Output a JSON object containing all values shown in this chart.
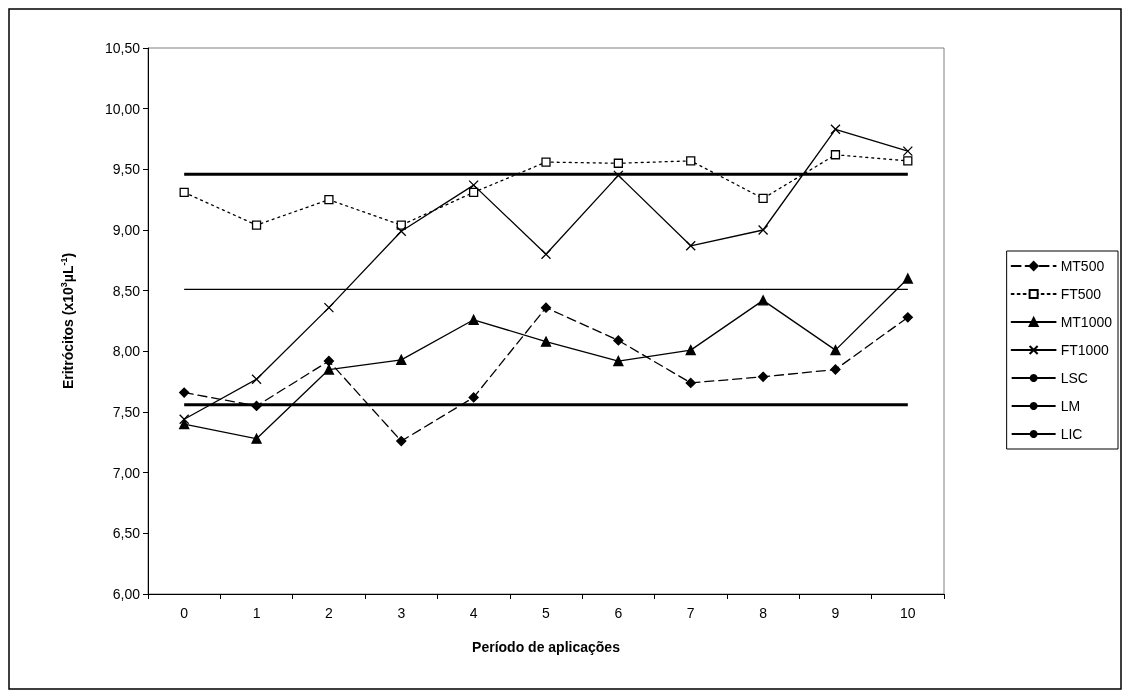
{
  "chart_data": {
    "type": "line",
    "xlabel": "Período de aplicações",
    "ylabel": "Eritrócitos (x10$^{3}$µL$^{-1}$)",
    "categories": [
      "0",
      "1",
      "2",
      "3",
      "4",
      "5",
      "6",
      "7",
      "8",
      "9",
      "10"
    ],
    "series": [
      {
        "name": "MT500",
        "color": "#000000",
        "marker": "diamond",
        "line_style": "dashed",
        "values": [
          7.66,
          7.55,
          7.92,
          7.26,
          7.62,
          8.36,
          8.09,
          7.74,
          7.79,
          7.85,
          8.28
        ]
      },
      {
        "name": "FT500",
        "color": "#000000",
        "marker": "square",
        "line_style": "dotted",
        "values": [
          9.31,
          9.04,
          9.25,
          9.04,
          9.31,
          9.56,
          9.55,
          9.57,
          9.26,
          9.62,
          9.57
        ]
      },
      {
        "name": "MT1000",
        "color": "#000000",
        "marker": "triangle",
        "line_style": "solid",
        "values": [
          7.4,
          7.28,
          7.85,
          7.93,
          8.26,
          8.08,
          7.92,
          8.01,
          8.42,
          8.01,
          8.6
        ]
      },
      {
        "name": "FT1000",
        "color": "#000000",
        "marker": "cross",
        "line_style": "solid",
        "values": [
          7.44,
          7.77,
          8.36,
          8.99,
          9.37,
          8.8,
          9.45,
          8.87,
          9.0,
          9.83,
          9.65
        ]
      }
    ],
    "ref_lines": [
      {
        "axis": "y",
        "value": 9.46,
        "label": "LSC",
        "color": "#000000",
        "line_style": "solid"
      },
      {
        "axis": "y",
        "value": 8.51,
        "label": "LM",
        "color": "#000000",
        "line_style": "solid"
      },
      {
        "axis": "y",
        "value": 7.56,
        "label": "LIC",
        "color": "#000000",
        "line_style": "solid"
      }
    ],
    "ylim": [
      6,
      10.5
    ],
    "yticks": [
      {
        "value": 6,
        "label": "6,00"
      },
      {
        "value": 6.5,
        "label": "6,50"
      },
      {
        "value": 7,
        "label": "7,00"
      },
      {
        "value": 7.5,
        "label": "7,50"
      },
      {
        "value": 8,
        "label": "8,00"
      },
      {
        "value": 8.5,
        "label": "8,50"
      },
      {
        "value": 9,
        "label": "9,00"
      },
      {
        "value": 9.5,
        "label": "9,50"
      },
      {
        "value": 10,
        "label": "10,00"
      },
      {
        "value": 10.5,
        "label": "10,50"
      }
    ],
    "grid": false,
    "legend": "right"
  }
}
